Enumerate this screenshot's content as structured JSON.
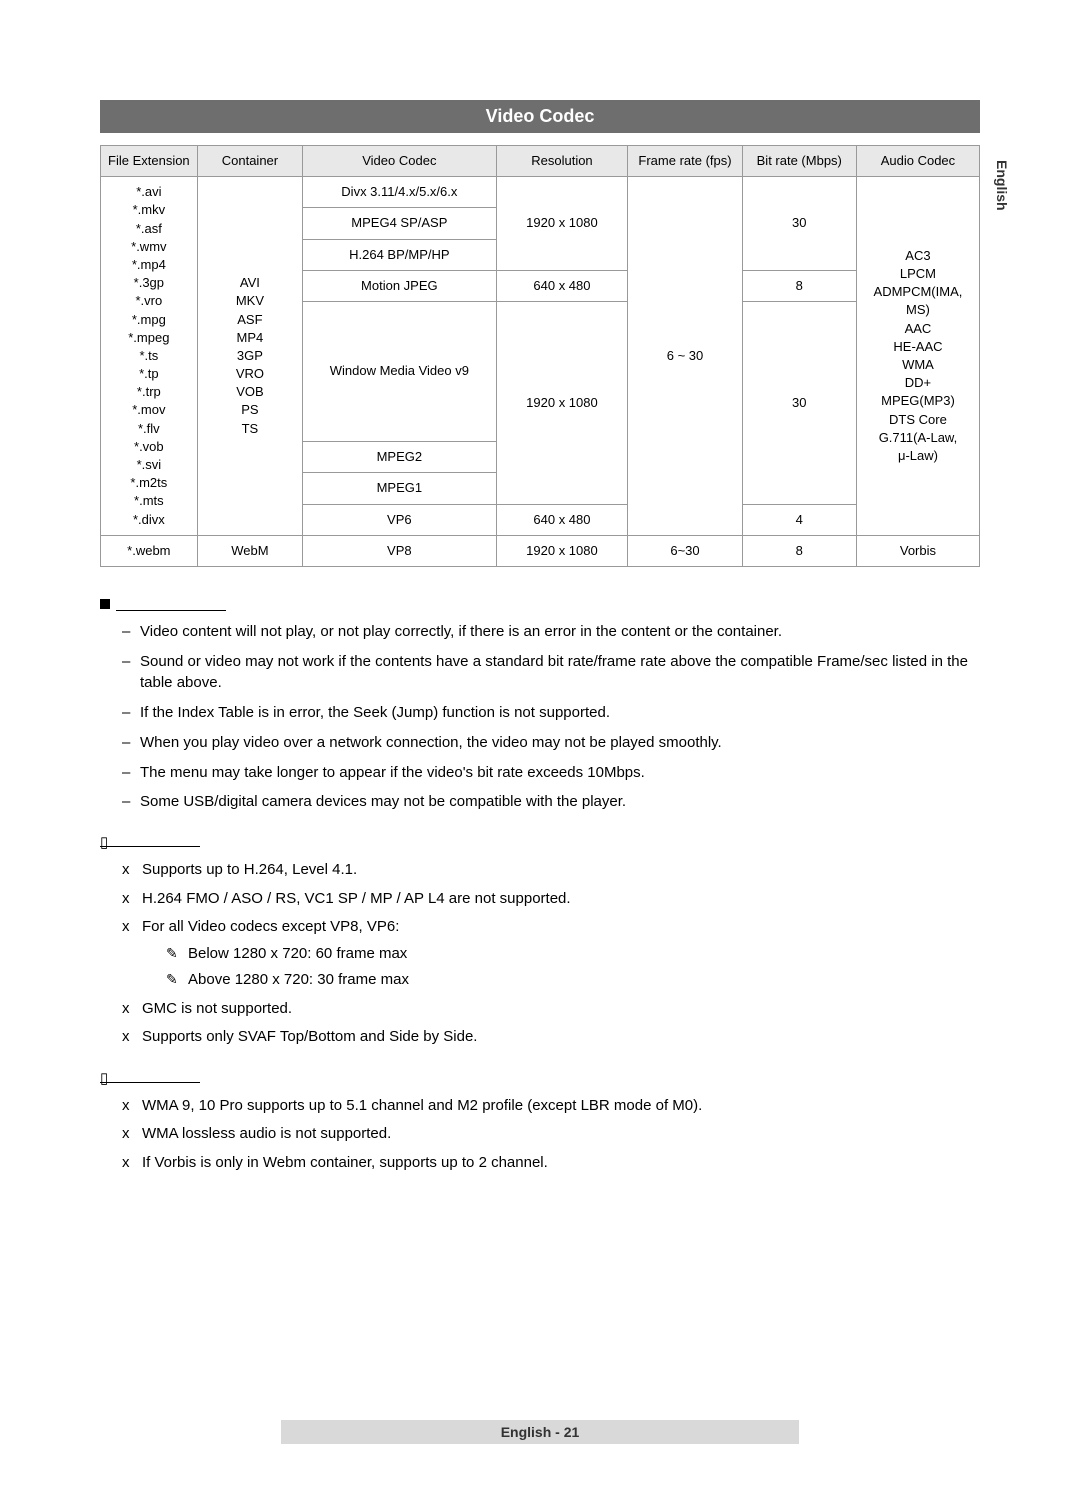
{
  "side_tab": "English",
  "header_title": "Video Codec",
  "table": {
    "headers": {
      "ext": "File\nExtension",
      "container": "Container",
      "vcodec": "Video Codec",
      "resolution": "Resolution",
      "fps": "Frame rate\n(fps)",
      "bitrate": "Bit rate\n(Mbps)",
      "acodec": "Audio Codec"
    },
    "file_extensions": "*.avi\n*.mkv\n*.asf\n*.wmv\n*.mp4\n*.3gp\n*.vro\n*.mpg\n*.mpeg\n*.ts\n*.tp\n*.trp\n*.mov\n*.flv\n*.vob\n*.svi\n*.m2ts\n*.mts\n*.divx",
    "containers": "AVI\nMKV\nASF\nMP4\n3GP\nVRO\nVOB\nPS\nTS",
    "codec_rows": [
      {
        "name": "Divx 3.11/4.x/5.x/6.x"
      },
      {
        "name": "MPEG4 SP/ASP"
      },
      {
        "name": "H.264 BP/MP/HP"
      },
      {
        "name": "Motion JPEG"
      },
      {
        "name": "Window Media Video v9"
      },
      {
        "name": "MPEG2"
      },
      {
        "name": "MPEG1"
      },
      {
        "name": "VP6"
      }
    ],
    "res_1080": "1920 x 1080",
    "res_480": "640 x 480",
    "fps_main": "6 ~ 30",
    "bitrate_30": "30",
    "bitrate_8": "8",
    "bitrate_4": "4",
    "audio_codecs": "AC3\nLPCM\nADMPCM(IMA, MS)\nAAC\nHE-AAC\nWMA\nDD+\nMPEG(MP3)\nDTS Core\nG.711(A-Law,\nμ-Law)",
    "webm_row": {
      "ext": "*.webm",
      "container": "WebM",
      "vcodec": "VP8",
      "resolution": "1920 x 1080",
      "fps": "6~30",
      "bitrate": "8",
      "acodec": "Vorbis"
    }
  },
  "limits": [
    "Video content will not play, or not play correctly, if there is an error in the content or the container.",
    "Sound or video may not work if the contents have a standard bit rate/frame rate above the compatible Frame/sec listed in the table above.",
    "If the Index Table is in error, the Seek (Jump) function is not supported.",
    "When you play video over a network connection, the video may not be played smoothly.",
    "The menu may take longer to appear if the video's bit rate exceeds 10Mbps.",
    "Some USB/digital camera devices may not be compatible with the player."
  ],
  "video_decoder": {
    "items": [
      "Supports up to H.264, Level 4.1.",
      "H.264 FMO / ASO / RS, VC1 SP / MP / AP L4 are not supported.",
      "For all Video codecs except VP8, VP6:",
      "GMC is not supported.",
      "Supports only SVAF Top/Bottom and Side by Side."
    ],
    "sub_items": [
      "Below 1280 x 720: 60 frame max",
      "Above 1280 x 720: 30 frame max"
    ]
  },
  "audio_decoder": {
    "items": [
      "WMA 9, 10 Pro supports up to 5.1 channel and M2 profile (except LBR mode of M0).",
      "WMA lossless audio is not supported.",
      "If Vorbis is only in Webm container, supports up to 2 channel."
    ]
  },
  "footer": "English - 21"
}
